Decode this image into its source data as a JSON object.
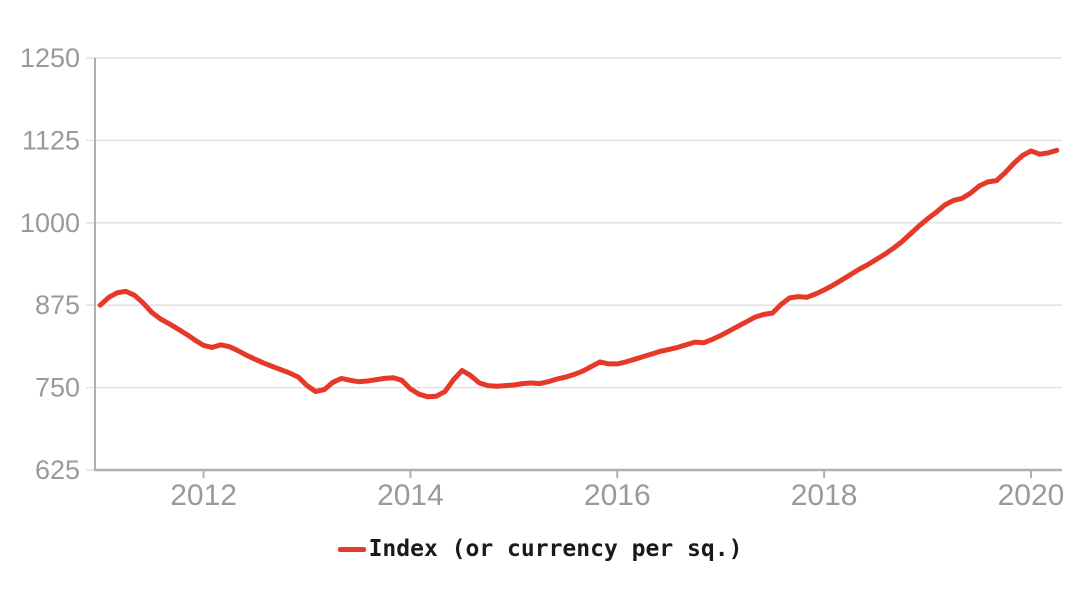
{
  "chart_data": {
    "type": "line",
    "title": "",
    "xlabel": "",
    "ylabel": "",
    "grid": true,
    "legend_position": "bottom-center",
    "xlim": [
      2010.95,
      2020.3
    ],
    "ylim": [
      625,
      1250
    ],
    "x_ticks": [
      "2012",
      "2014",
      "2016",
      "2018",
      "2020"
    ],
    "x_tick_values": [
      2012,
      2014,
      2016,
      2018,
      2020
    ],
    "y_ticks": [
      "625",
      "750",
      "875",
      "1000",
      "1125",
      "1250"
    ],
    "y_tick_values": [
      625,
      750,
      875,
      1000,
      1125,
      1250
    ],
    "series": [
      {
        "name": "Index (or currency per sq.)",
        "color": "#e6392a",
        "start_year": 2011,
        "points_per_year": 12,
        "values": [
          875,
          887,
          894,
          896,
          890,
          878,
          864,
          854,
          847,
          839,
          831,
          822,
          814,
          811,
          815,
          812,
          806,
          799,
          793,
          787,
          782,
          777,
          772,
          766,
          753,
          744,
          747,
          758,
          764,
          761,
          759,
          760,
          762,
          764,
          765,
          761,
          748,
          740,
          736,
          737,
          744,
          762,
          776,
          768,
          757,
          753,
          752,
          753,
          754,
          756,
          757,
          756,
          759,
          763,
          766,
          770,
          775,
          782,
          789,
          786,
          786,
          789,
          793,
          797,
          801,
          805,
          808,
          811,
          815,
          819,
          818,
          823,
          829,
          836,
          843,
          850,
          857,
          861,
          863,
          876,
          886,
          888,
          887,
          892,
          898,
          905,
          913,
          921,
          929,
          936,
          944,
          952,
          961,
          971,
          983,
          995,
          1006,
          1016,
          1027,
          1034,
          1037,
          1045,
          1056,
          1062,
          1064,
          1076,
          1090,
          1102,
          1109,
          1104,
          1106,
          1110
        ]
      }
    ]
  },
  "legend": {
    "label": "Index (or currency per sq.)"
  },
  "colors": {
    "line": "#e6392a",
    "grid": "#dedede",
    "axis": "#b0b0b0",
    "tick_label": "#9a9a9a",
    "legend_text": "#1a1a1a",
    "background": "#ffffff"
  }
}
